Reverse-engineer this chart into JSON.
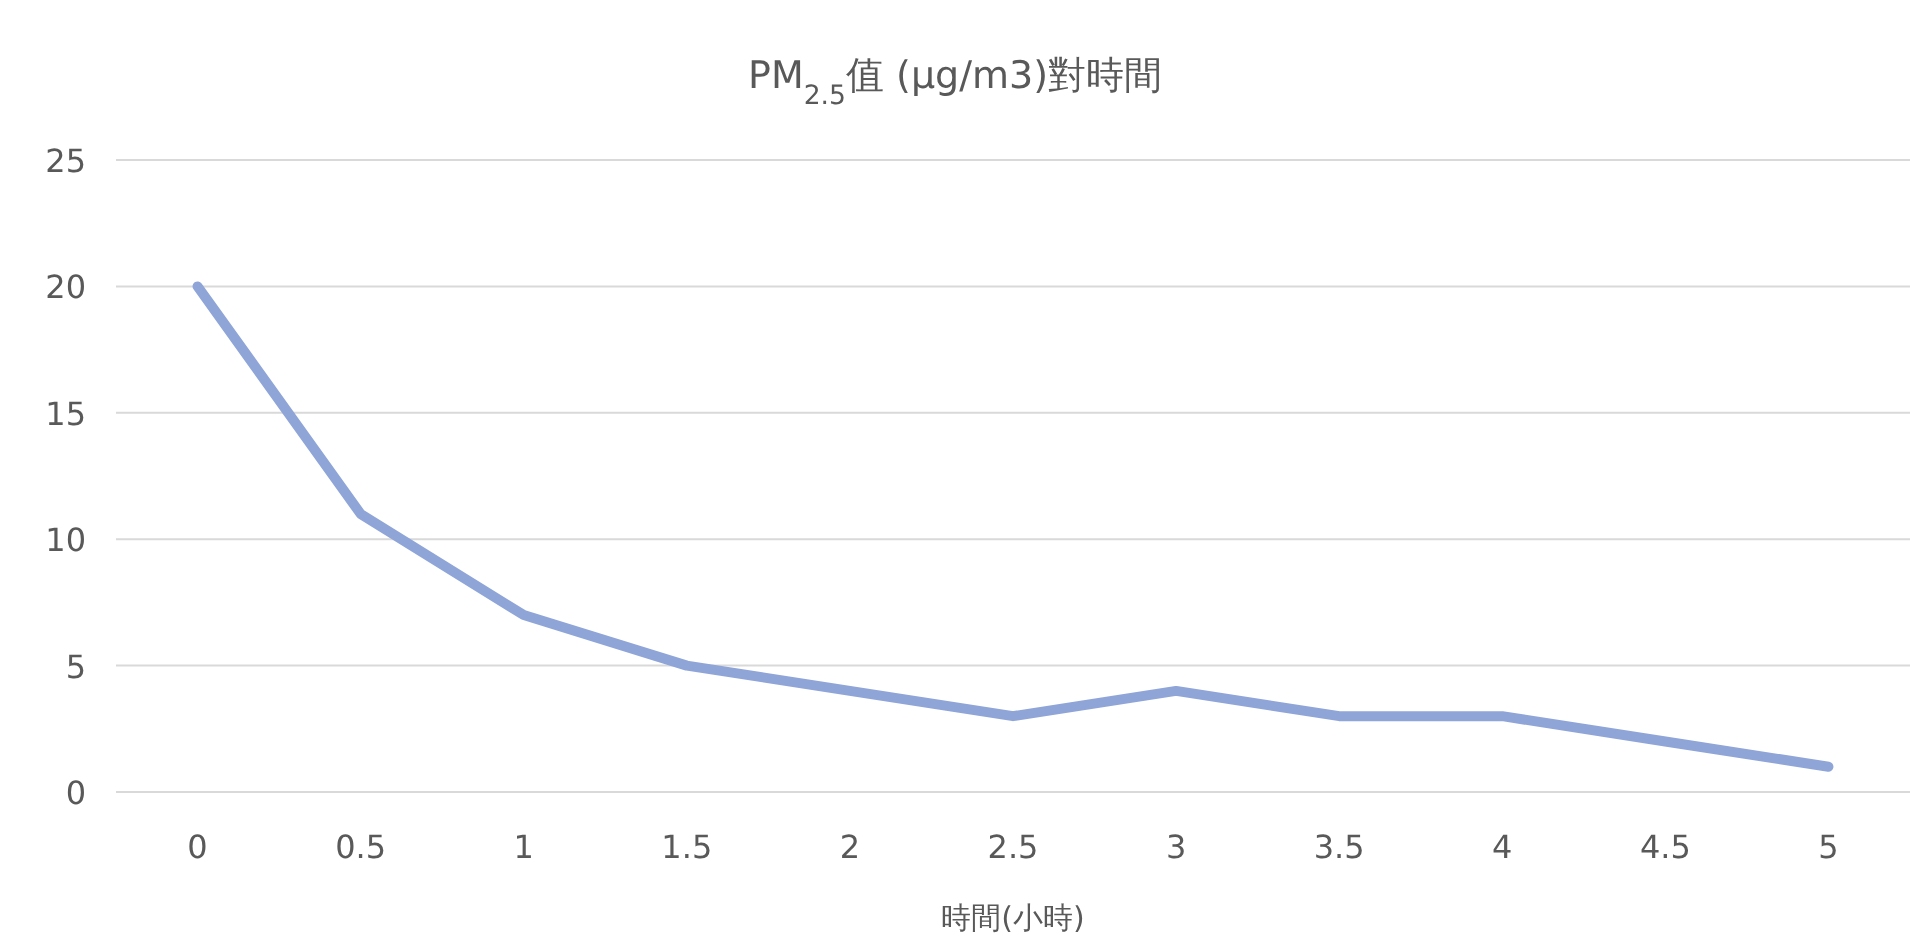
{
  "chart_data": {
    "type": "line",
    "title": "PM$_{2.5}$值 (µg/m3)對時間",
    "xlabel": "時間(小時)",
    "categories": [
      "0",
      "0.5",
      "1",
      "1.5",
      "2",
      "2.5",
      "3",
      "3.5",
      "4",
      "4.5",
      "5"
    ],
    "series": [
      {
        "color": "#8fa5d8",
        "values": [
          20,
          11,
          7,
          5,
          4,
          3,
          4,
          3,
          3,
          2,
          1
        ]
      }
    ],
    "ylim": [
      0,
      25
    ],
    "yticks": [
      0,
      5,
      10,
      15,
      20,
      25
    ],
    "grid": "y",
    "marker": "none",
    "line_style": "solid"
  }
}
